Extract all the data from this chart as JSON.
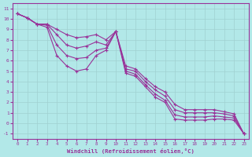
{
  "xlabel": "Windchill (Refroidissement éolien,°C)",
  "background_color": "#b2e8e8",
  "grid_color": "#a0d0d0",
  "line_color": "#993399",
  "xlim": [
    -0.5,
    23.5
  ],
  "ylim": [
    -1.5,
    11.5
  ],
  "xticks": [
    0,
    1,
    2,
    3,
    4,
    5,
    6,
    7,
    8,
    9,
    10,
    11,
    12,
    13,
    14,
    15,
    16,
    17,
    18,
    19,
    20,
    21,
    22,
    23
  ],
  "yticks": [
    -1,
    0,
    1,
    2,
    3,
    4,
    5,
    6,
    7,
    8,
    9,
    10,
    11
  ],
  "s1_x": [
    0,
    1,
    2,
    3,
    4,
    5,
    6,
    7,
    8,
    9,
    10,
    11,
    12,
    13,
    14,
    15,
    16,
    17,
    18,
    19,
    20,
    21,
    22,
    23
  ],
  "s1_y": [
    10.5,
    10.1,
    9.5,
    9.2,
    6.5,
    5.5,
    5.0,
    5.2,
    6.5,
    7.0,
    8.8,
    4.8,
    4.5,
    3.5,
    2.5,
    2.0,
    0.4,
    0.3,
    0.3,
    0.3,
    0.4,
    0.4,
    0.3,
    -1.0
  ],
  "s2_x": [
    0,
    1,
    2,
    3,
    4,
    5,
    6,
    7,
    8,
    9,
    10,
    11,
    12,
    13,
    14,
    15,
    16,
    17,
    18,
    19,
    20,
    21,
    22,
    23
  ],
  "s2_y": [
    10.5,
    10.1,
    9.5,
    9.4,
    7.5,
    6.5,
    6.2,
    6.3,
    7.0,
    7.2,
    8.8,
    5.0,
    4.7,
    3.7,
    2.8,
    2.2,
    0.8,
    0.6,
    0.6,
    0.6,
    0.7,
    0.6,
    0.5,
    -1.0
  ],
  "s3_x": [
    0,
    1,
    2,
    3,
    4,
    5,
    6,
    7,
    8,
    9,
    10,
    11,
    12,
    13,
    14,
    15,
    16,
    17,
    18,
    19,
    20,
    21,
    22,
    23
  ],
  "s3_y": [
    10.5,
    10.1,
    9.5,
    9.5,
    8.5,
    7.5,
    7.2,
    7.4,
    7.8,
    7.5,
    8.8,
    5.2,
    5.0,
    4.0,
    3.2,
    2.6,
    1.3,
    1.0,
    1.0,
    1.0,
    1.0,
    0.9,
    0.7,
    -1.0
  ],
  "s4_x": [
    0,
    1,
    2,
    3,
    4,
    5,
    6,
    7,
    8,
    9,
    10,
    11,
    12,
    13,
    14,
    15,
    16,
    17,
    18,
    19,
    20,
    21,
    22,
    23
  ],
  "s4_y": [
    10.5,
    10.1,
    9.5,
    9.5,
    9.0,
    8.5,
    8.2,
    8.3,
    8.5,
    8.0,
    8.8,
    5.5,
    5.2,
    4.3,
    3.5,
    3.0,
    1.8,
    1.3,
    1.3,
    1.3,
    1.3,
    1.1,
    0.9,
    -1.0
  ]
}
